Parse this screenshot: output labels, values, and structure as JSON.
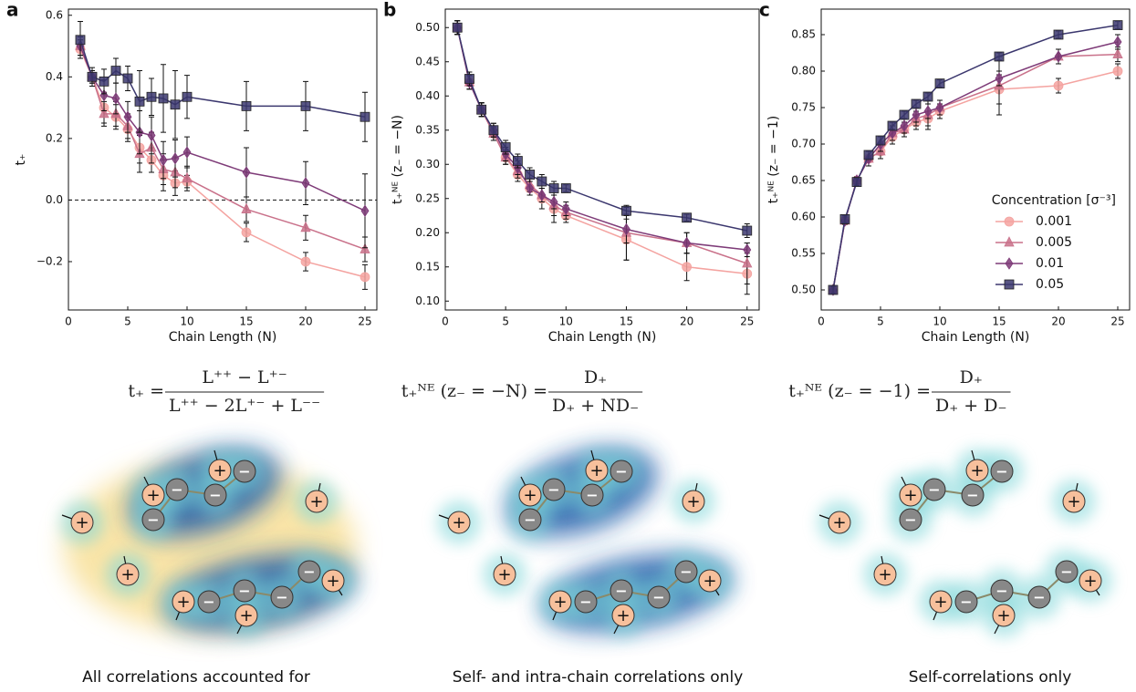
{
  "chart_data": [
    {
      "type": "line",
      "panel": "a",
      "x_label": "Chain Length (N)",
      "y_label": "t₊",
      "x": [
        1,
        2,
        3,
        4,
        5,
        6,
        7,
        8,
        9,
        10,
        15,
        20,
        25
      ],
      "xlim": [
        0,
        26
      ],
      "xticks": [
        0,
        5,
        10,
        15,
        20,
        25
      ],
      "ylim": [
        -0.357,
        0.62
      ],
      "yticks": [
        {
          "value": -0.2,
          "label": "−0.2"
        },
        {
          "value": 0,
          "label": "0.0"
        },
        0.2,
        0.4,
        0.6
      ],
      "hline": 0,
      "series": [
        {
          "name": "0.001",
          "color": "#f4a3a0",
          "marker": "circle",
          "values": [
            0.49,
            0.4,
            0.3,
            0.27,
            0.23,
            0.17,
            0.13,
            0.08,
            0.055,
            0.06,
            -0.105,
            -0.2,
            -0.25
          ],
          "errors": [
            0.03,
            0.02,
            0.05,
            0.04,
            0.04,
            0.05,
            0.04,
            0.05,
            0.04,
            0.02,
            0.03,
            0.03,
            0.04
          ]
        },
        {
          "name": "0.005",
          "color": "#c9718a",
          "marker": "triangle",
          "values": [
            0.5,
            0.4,
            0.28,
            0.28,
            0.24,
            0.15,
            0.17,
            0.1,
            0.09,
            0.07,
            -0.03,
            -0.09,
            -0.16
          ],
          "errors": [
            0.03,
            0.02,
            0.04,
            0.04,
            0.04,
            0.06,
            0.05,
            0.05,
            0.05,
            0.04,
            0.04,
            0.04,
            0.04
          ]
        },
        {
          "name": "0.01",
          "color": "#7e3b78",
          "marker": "diamond",
          "values": [
            0.5,
            0.4,
            0.34,
            0.33,
            0.27,
            0.22,
            0.21,
            0.13,
            0.135,
            0.155,
            0.09,
            0.055,
            -0.035
          ],
          "errors": [
            0.03,
            0.02,
            0.05,
            0.05,
            0.05,
            0.07,
            0.06,
            0.06,
            0.06,
            0.05,
            0.08,
            0.07,
            0.12
          ]
        },
        {
          "name": "0.05",
          "color": "#3b376e",
          "marker": "square",
          "values": [
            0.52,
            0.4,
            0.385,
            0.42,
            0.395,
            0.32,
            0.335,
            0.33,
            0.31,
            0.335,
            0.305,
            0.305,
            0.27
          ],
          "errors": [
            0.06,
            0.03,
            0.04,
            0.04,
            0.04,
            0.1,
            0.06,
            0.11,
            0.11,
            0.07,
            0.08,
            0.08,
            0.08
          ]
        }
      ]
    },
    {
      "type": "line",
      "panel": "b",
      "x_label": "Chain Length (N)",
      "y_label": "t₊ᴺᴱ (z₋ = −N)",
      "x": [
        1,
        2,
        3,
        4,
        5,
        6,
        7,
        8,
        9,
        10,
        15,
        20,
        25
      ],
      "xlim": [
        0,
        26
      ],
      "xticks": [
        0,
        5,
        10,
        15,
        20,
        25
      ],
      "ylim": [
        0.087,
        0.527
      ],
      "yticks": [
        {
          "value": 0.1,
          "label": "0.10"
        },
        0.15,
        {
          "value": 0.2,
          "label": "0.20"
        },
        0.25,
        {
          "value": 0.3,
          "label": "0.30"
        },
        0.35,
        {
          "value": 0.4,
          "label": "0.40"
        },
        0.45,
        {
          "value": 0.5,
          "label": "0.50"
        }
      ],
      "series": [
        {
          "name": "0.001",
          "color": "#f4a3a0",
          "marker": "circle",
          "values": [
            0.5,
            0.42,
            0.38,
            0.345,
            0.31,
            0.285,
            0.265,
            0.25,
            0.235,
            0.225,
            0.19,
            0.15,
            0.14
          ],
          "errors": [
            0.01,
            0.01,
            0.01,
            0.01,
            0.01,
            0.01,
            0.01,
            0.015,
            0.02,
            0.01,
            0.03,
            0.02,
            0.03
          ]
        },
        {
          "name": "0.005",
          "color": "#c9718a",
          "marker": "triangle",
          "values": [
            0.5,
            0.42,
            0.38,
            0.345,
            0.31,
            0.29,
            0.27,
            0.255,
            0.24,
            0.23,
            0.2,
            0.185,
            0.155
          ],
          "errors": [
            0.01,
            0.01,
            0.01,
            0.01,
            0.01,
            0.01,
            0.01,
            0.01,
            0.015,
            0.01,
            0.04,
            0.015,
            0.03
          ]
        },
        {
          "name": "0.01",
          "color": "#7e3b78",
          "marker": "diamond",
          "values": [
            0.5,
            0.42,
            0.38,
            0.35,
            0.315,
            0.295,
            0.265,
            0.255,
            0.245,
            0.235,
            0.205,
            0.185,
            0.175
          ],
          "errors": [
            0.01,
            0.01,
            0.01,
            0.01,
            0.01,
            0.01,
            0.01,
            0.01,
            0.01,
            0.01,
            0.02,
            0.015,
            0.01
          ]
        },
        {
          "name": "0.05",
          "color": "#3b376e",
          "marker": "square",
          "values": [
            0.5,
            0.425,
            0.38,
            0.35,
            0.325,
            0.305,
            0.285,
            0.275,
            0.265,
            0.265,
            0.232,
            0.222,
            0.203
          ],
          "errors": [
            0.01,
            0.01,
            0.01,
            0.01,
            0.01,
            0.01,
            0.01,
            0.01,
            0.01,
            0.005,
            0.005,
            0.005,
            0.01
          ]
        }
      ]
    },
    {
      "type": "line",
      "panel": "c",
      "x_label": "Chain Length (N)",
      "y_label": "t₊ᴺᴱ (z₋ = −1)",
      "x": [
        1,
        2,
        3,
        4,
        5,
        6,
        7,
        8,
        9,
        10,
        15,
        20,
        25
      ],
      "xlim": [
        0,
        26
      ],
      "xticks": [
        0,
        5,
        10,
        15,
        20,
        25
      ],
      "ylim": [
        0.4725,
        0.885
      ],
      "yticks": [
        {
          "value": 0.5,
          "label": "0.50"
        },
        0.55,
        {
          "value": 0.6,
          "label": "0.60"
        },
        0.65,
        {
          "value": 0.7,
          "label": "0.70"
        },
        0.75,
        {
          "value": 0.8,
          "label": "0.80"
        },
        0.85
      ],
      "legend_title": "Concentration [σ⁻³]",
      "legend": "lower right",
      "series": [
        {
          "name": "0.001",
          "color": "#f4a3a0",
          "marker": "circle",
          "values": [
            0.5,
            0.595,
            0.65,
            0.68,
            0.69,
            0.71,
            0.72,
            0.73,
            0.735,
            0.745,
            0.775,
            0.78,
            0.8
          ],
          "errors": [
            0.005,
            0.005,
            0.005,
            0.01,
            0.01,
            0.01,
            0.01,
            0.01,
            0.01,
            0.01,
            0.02,
            0.01,
            0.01
          ]
        },
        {
          "name": "0.005",
          "color": "#c9718a",
          "marker": "triangle",
          "values": [
            0.5,
            0.595,
            0.65,
            0.68,
            0.69,
            0.715,
            0.72,
            0.735,
            0.74,
            0.75,
            0.78,
            0.82,
            0.823
          ],
          "errors": [
            0.005,
            0.005,
            0.005,
            0.01,
            0.01,
            0.01,
            0.01,
            0.01,
            0.02,
            0.01,
            0.04,
            0.01,
            0.01
          ]
        },
        {
          "name": "0.01",
          "color": "#7e3b78",
          "marker": "diamond",
          "values": [
            0.5,
            0.595,
            0.65,
            0.68,
            0.7,
            0.715,
            0.725,
            0.74,
            0.745,
            0.75,
            0.79,
            0.82,
            0.84
          ],
          "errors": [
            0.005,
            0.005,
            0.005,
            0.01,
            0.01,
            0.01,
            0.01,
            0.01,
            0.01,
            0.01,
            0.01,
            0.01,
            0.01
          ]
        },
        {
          "name": "0.05",
          "color": "#3b376e",
          "marker": "square",
          "values": [
            0.5,
            0.597,
            0.648,
            0.685,
            0.705,
            0.725,
            0.74,
            0.755,
            0.765,
            0.783,
            0.82,
            0.85,
            0.863
          ],
          "errors": [
            0.005,
            0.005,
            0.005,
            0.005,
            0.005,
            0.005,
            0.005,
            0.005,
            0.005,
            0.005,
            0.005,
            0.005,
            0.005
          ]
        }
      ]
    }
  ],
  "formulas": [
    {
      "lhs": "t₊ =",
      "num": "L⁺⁺ − L⁺⁻",
      "den": "L⁺⁺ − 2L⁺⁻ + L⁻⁻"
    },
    {
      "lhs": "t₊ᴺᴱ (z₋ = −N) =",
      "num": "D₊",
      "den": "D₊ + ND₋"
    },
    {
      "lhs": "t₊ᴺᴱ (z₋ = −1) =",
      "num": "D₊",
      "den": "D₊ + D₋"
    }
  ],
  "ion_symbols": {
    "cation": "+",
    "anion": "−"
  },
  "captions": [
    "All correlations accounted for",
    "Self- and intra-chain correlations only",
    "Self-correlations only"
  ]
}
